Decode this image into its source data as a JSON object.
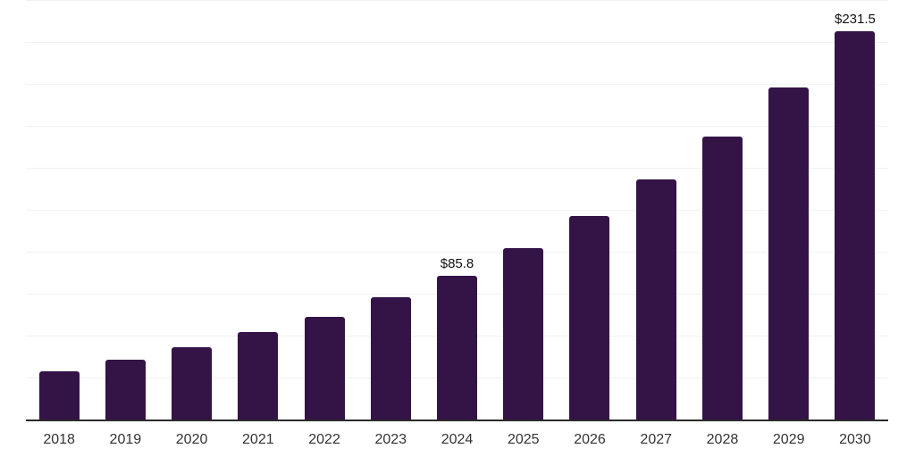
{
  "chart_data": {
    "type": "bar",
    "title": "",
    "xlabel": "",
    "ylabel": "",
    "categories": [
      "2018",
      "2019",
      "2020",
      "2021",
      "2022",
      "2023",
      "2024",
      "2025",
      "2026",
      "2027",
      "2028",
      "2029",
      "2030"
    ],
    "values": [
      28.6,
      35.4,
      43.3,
      52.4,
      61.3,
      72.8,
      85.8,
      102.3,
      121.5,
      143.0,
      168.5,
      198.0,
      231.5
    ],
    "value_labels": {
      "2024": "$85.8",
      "2030": "$231.5"
    },
    "ylim": [
      0,
      250
    ],
    "ytick_step": 25,
    "grid": "horizontal",
    "legend": false,
    "y_axis_labels_visible": false,
    "colors": {
      "bar": "#341347",
      "gridline": "#f2f1f3",
      "axis_line": "#2b2b2b",
      "tick_label": "#333333",
      "value_label": "#111111",
      "background": "#ffffff"
    }
  }
}
